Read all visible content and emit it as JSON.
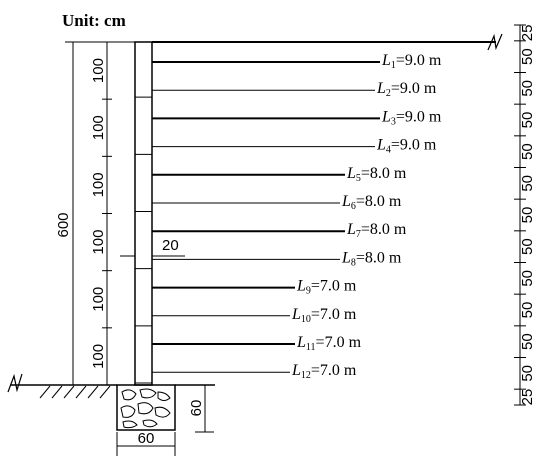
{
  "unit_label": "Unit: cm",
  "left_dims": {
    "total": "600",
    "segments": [
      "100",
      "100",
      "100",
      "100",
      "100",
      "100"
    ]
  },
  "wall_offset": "20",
  "foundation": {
    "width": "60",
    "depth": "60"
  },
  "right_dims": [
    "25",
    "50",
    "50",
    "50",
    "50",
    "50",
    "50",
    "50",
    "50",
    "50",
    "50",
    "50",
    "25"
  ],
  "anchors": [
    {
      "symbol": "L",
      "index": "1",
      "length": "=9.0 m"
    },
    {
      "symbol": "L",
      "index": "2",
      "length": "=9.0 m"
    },
    {
      "symbol": "L",
      "index": "3",
      "length": "=9.0 m"
    },
    {
      "symbol": "L",
      "index": "4",
      "length": "=9.0 m"
    },
    {
      "symbol": "L",
      "index": "5",
      "length": "=8.0 m"
    },
    {
      "symbol": "L",
      "index": "6",
      "length": "=8.0 m"
    },
    {
      "symbol": "L",
      "index": "7",
      "length": "=8.0 m"
    },
    {
      "symbol": "L",
      "index": "8",
      "length": "=8.0 m"
    },
    {
      "symbol": "L",
      "index": "9",
      "length": "=7.0 m"
    },
    {
      "symbol": "L",
      "index": "10",
      "length": "=7.0 m"
    },
    {
      "symbol": "L",
      "index": "11",
      "length": "=7.0 m"
    },
    {
      "symbol": "L",
      "index": "12",
      "length": "=7.0 m"
    }
  ]
}
